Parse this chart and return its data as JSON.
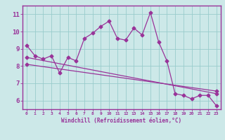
{
  "title": "",
  "xlabel": "Windchill (Refroidissement éolien,°C)",
  "ylabel": "",
  "bg_color": "#cce8e8",
  "line_color": "#993399",
  "grid_color": "#99cccc",
  "xlim": [
    -0.5,
    23.5
  ],
  "ylim": [
    5.5,
    11.5
  ],
  "xticks": [
    0,
    1,
    2,
    3,
    4,
    5,
    6,
    7,
    8,
    9,
    10,
    11,
    12,
    13,
    14,
    15,
    16,
    17,
    18,
    19,
    20,
    21,
    22,
    23
  ],
  "yticks": [
    6,
    7,
    8,
    9,
    10,
    11
  ],
  "series1_x": [
    0,
    1,
    2,
    3,
    4,
    5,
    6,
    7,
    8,
    9,
    10,
    11,
    12,
    13,
    14,
    15,
    16,
    17,
    18,
    19,
    20,
    21,
    22,
    23
  ],
  "series1_y": [
    9.2,
    8.6,
    8.4,
    8.6,
    7.6,
    8.5,
    8.3,
    9.6,
    9.9,
    10.3,
    10.6,
    9.6,
    9.5,
    10.2,
    9.8,
    11.1,
    9.4,
    8.3,
    6.4,
    6.3,
    6.1,
    6.3,
    6.3,
    5.7
  ],
  "series2_x": [
    0,
    23
  ],
  "series2_y": [
    8.5,
    6.4
  ],
  "series3_x": [
    0,
    23
  ],
  "series3_y": [
    8.1,
    6.55
  ]
}
